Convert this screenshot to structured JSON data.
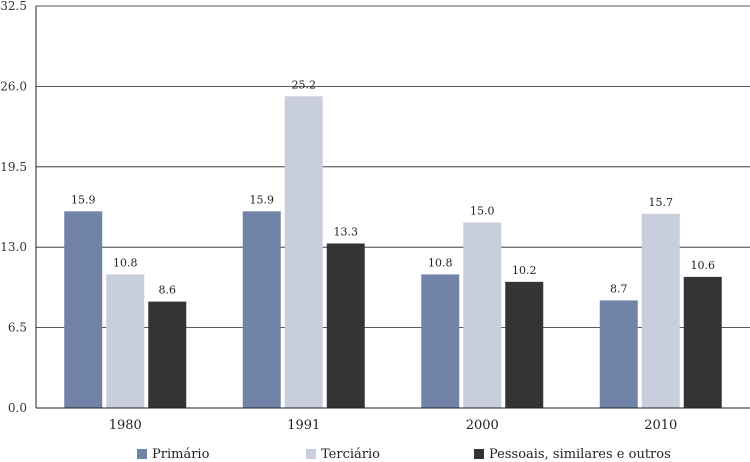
{
  "chart_data": {
    "type": "bar",
    "categories": [
      "1980",
      "1991",
      "2000",
      "2010"
    ],
    "series": [
      {
        "name": "Primário",
        "color": "#7283a8",
        "values": [
          15.9,
          15.9,
          10.8,
          8.7
        ]
      },
      {
        "name": "Terciário",
        "color": "#c8cedb",
        "values": [
          10.8,
          25.2,
          15.0,
          15.7
        ]
      },
      {
        "name": "Pessoais, similares e outros",
        "color": "#353435",
        "values": [
          8.6,
          13.3,
          10.2,
          10.6
        ]
      }
    ],
    "y_ticks": [
      "0.0",
      "6.5",
      "13.0",
      "19.5",
      "26.0",
      "32.5"
    ],
    "ylim": [
      0,
      32.5
    ],
    "grid": true,
    "legend_position": "bottom"
  }
}
